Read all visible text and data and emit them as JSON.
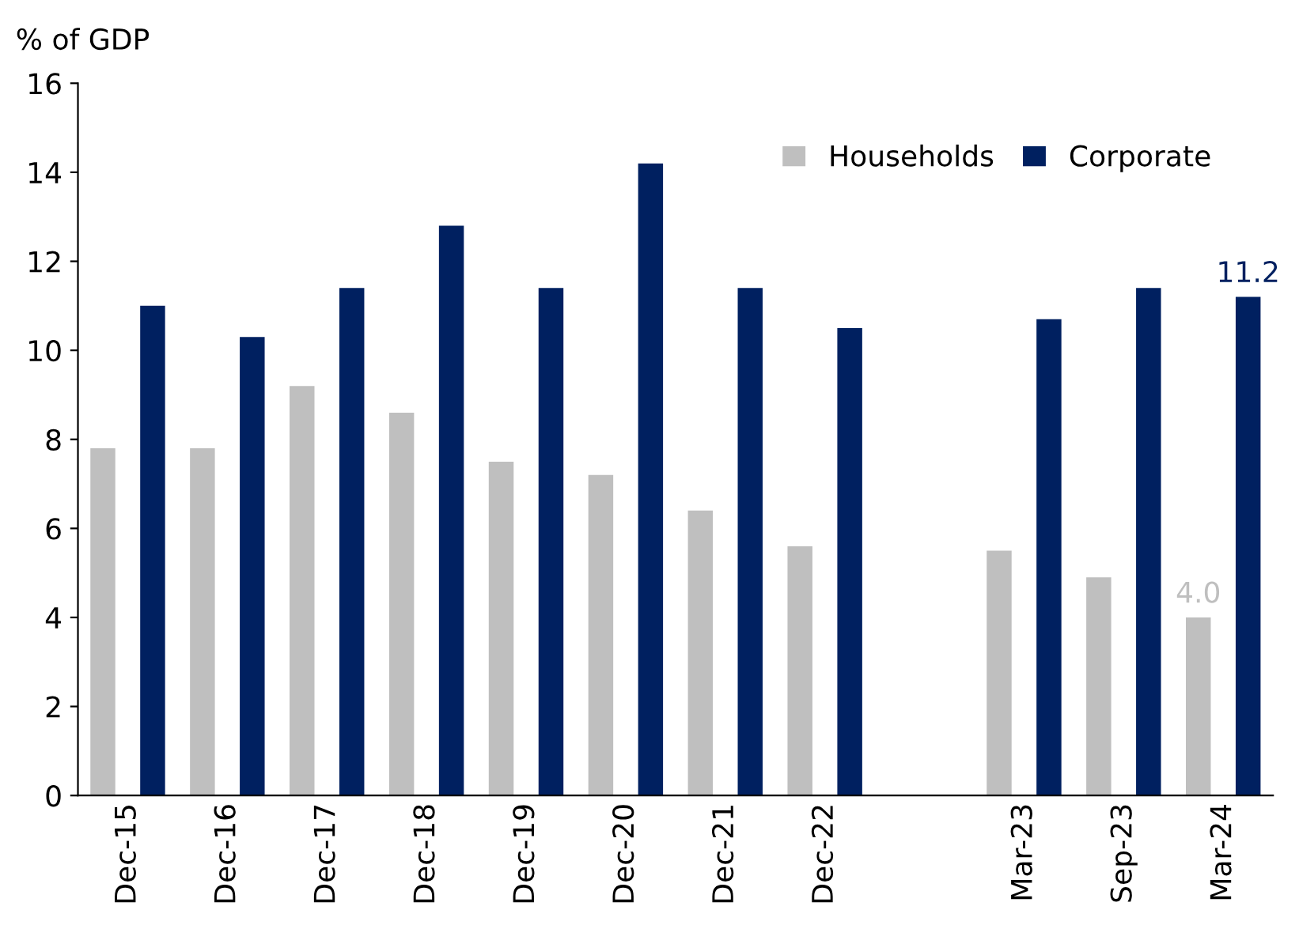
{
  "chart_data": {
    "type": "bar",
    "ylabel": "% of GDP",
    "categories": [
      "Dec-15",
      "Dec-16",
      "Dec-17",
      "Dec-18",
      "Dec-19",
      "Dec-20",
      "Dec-21",
      "Dec-22",
      null,
      "Mar-23",
      "Sep-23",
      "Mar-24"
    ],
    "series": [
      {
        "name": "Households",
        "color": "#bfbfbf",
        "values": [
          7.8,
          7.8,
          9.2,
          8.6,
          7.5,
          7.2,
          6.4,
          5.6,
          null,
          5.5,
          4.9,
          4.0
        ],
        "value_labels": [
          null,
          null,
          null,
          null,
          null,
          null,
          null,
          null,
          null,
          null,
          null,
          "4.0"
        ]
      },
      {
        "name": "Corporate",
        "color": "#002060",
        "values": [
          11.0,
          10.3,
          11.4,
          12.8,
          11.4,
          14.2,
          11.4,
          10.5,
          null,
          10.7,
          11.4,
          11.2
        ],
        "value_labels": [
          null,
          null,
          null,
          null,
          null,
          null,
          null,
          null,
          null,
          null,
          null,
          "11.2"
        ]
      }
    ],
    "ylim": [
      0,
      16
    ],
    "yticks": [
      0,
      2,
      4,
      6,
      8,
      10,
      12,
      14,
      16
    ],
    "grid": false,
    "legend": "top right"
  }
}
